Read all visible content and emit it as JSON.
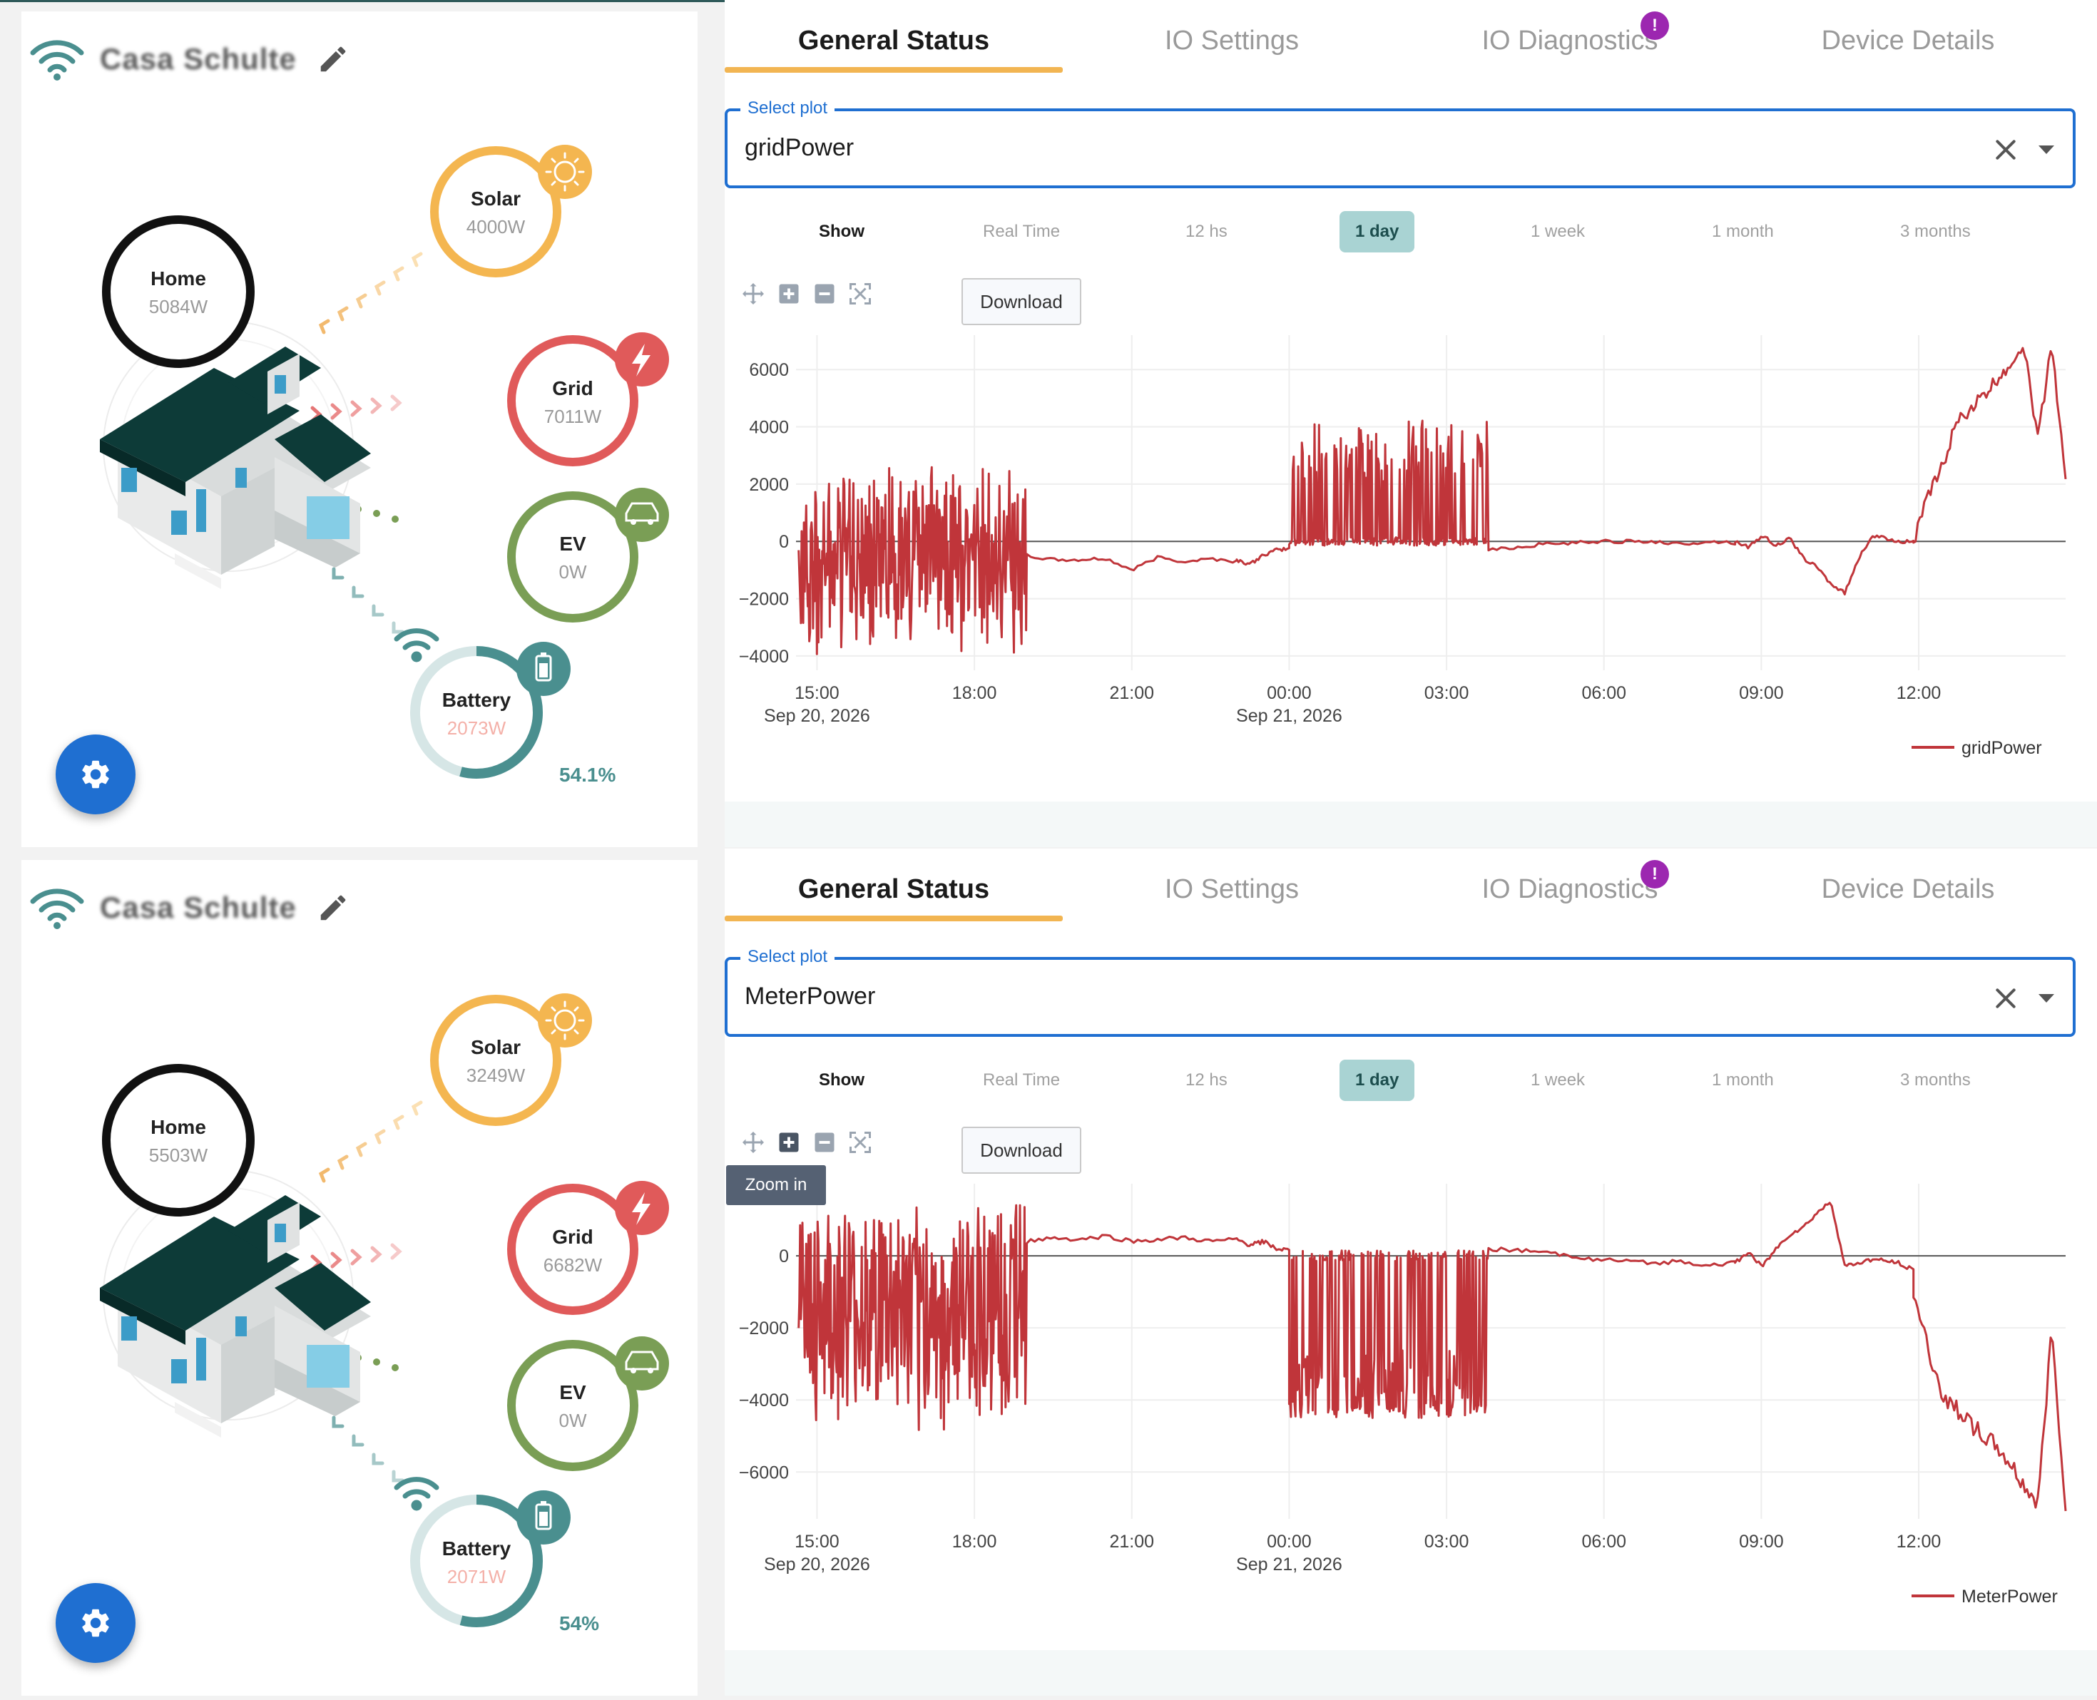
{
  "panels": [
    {
      "device_name": "Casa Schulte",
      "tabs": [
        {
          "label": "General Status",
          "active": true
        },
        {
          "label": "IO Settings",
          "active": false
        },
        {
          "label": "IO Diagnostics",
          "active": false,
          "badge": "!"
        },
        {
          "label": "Device Details",
          "active": false
        }
      ],
      "energy_flow": {
        "home": {
          "label": "Home",
          "value": "5084W"
        },
        "solar": {
          "label": "Solar",
          "value": "4000W"
        },
        "grid": {
          "label": "Grid",
          "value": "7011W"
        },
        "ev": {
          "label": "EV",
          "value": "0W"
        },
        "battery": {
          "label": "Battery",
          "value": "2073W",
          "soc": "54.1%",
          "soc_fraction": 0.541
        }
      },
      "select_plot": {
        "label": "Select plot",
        "value": "gridPower"
      },
      "time_range": {
        "show_label": "Show",
        "options": [
          "Real Time",
          "12 hs",
          "1 day",
          "1 week",
          "1 month",
          "3 months"
        ],
        "selected": "1 day"
      },
      "download_label": "Download",
      "tooltip": null,
      "chart_data": {
        "type": "line",
        "series": [
          {
            "name": "gridPower",
            "color": "#c0353a"
          }
        ],
        "x_ticks": [
          {
            "label": "15:00",
            "sub": "Sep 20, 2026",
            "hour": 0
          },
          {
            "label": "18:00",
            "sub": "",
            "hour": 3
          },
          {
            "label": "21:00",
            "sub": "",
            "hour": 6
          },
          {
            "label": "00:00",
            "sub": "Sep 21, 2026",
            "hour": 9
          },
          {
            "label": "03:00",
            "sub": "",
            "hour": 12
          },
          {
            "label": "06:00",
            "sub": "",
            "hour": 15
          },
          {
            "label": "09:00",
            "sub": "",
            "hour": 18
          },
          {
            "label": "12:00",
            "sub": "",
            "hour": 21
          }
        ],
        "x_range_hours": [
          -0.4,
          23.8
        ],
        "y_ticks": [
          -4000,
          -2000,
          0,
          2000,
          4000,
          6000
        ],
        "ylim": [
          -4500,
          7200
        ],
        "segments": [
          {
            "from": -0.35,
            "to": 4.0,
            "kind": "noise",
            "lo": -4000,
            "hi": 3200,
            "base": -500
          },
          {
            "from": 4.0,
            "to": 8.0,
            "kind": "flat",
            "values": [
              -500,
              -650,
              -650,
              -600,
              -1000,
              -550,
              -700,
              -600,
              -700
            ]
          },
          {
            "from": 8.0,
            "to": 9.0,
            "kind": "flat",
            "values": [
              -650,
              -800,
              -500,
              -300,
              -250
            ]
          },
          {
            "from": 9.0,
            "to": 12.8,
            "kind": "spikes",
            "lo": -200,
            "hi": 4500,
            "base": 0
          },
          {
            "from": 12.8,
            "to": 17.5,
            "kind": "flat",
            "values": [
              -300,
              -200,
              -100,
              -50,
              0,
              0,
              0,
              -100,
              0,
              -50
            ]
          },
          {
            "from": 17.5,
            "to": 20.9,
            "kind": "flat",
            "values": [
              0,
              -200,
              200,
              -150,
              100,
              -600,
              -900,
              -1500,
              -1800,
              -600,
              200,
              100,
              0,
              0
            ]
          },
          {
            "from": 20.9,
            "to": 23.8,
            "kind": "rise",
            "values": [
              0,
              1500,
              2500,
              4000,
              4600,
              5000,
              5600,
              6200,
              6900,
              3500,
              7000,
              2000
            ]
          }
        ]
      }
    },
    {
      "device_name": "Casa Schulte",
      "tabs": [
        {
          "label": "General Status",
          "active": true
        },
        {
          "label": "IO Settings",
          "active": false
        },
        {
          "label": "IO Diagnostics",
          "active": false,
          "badge": "!"
        },
        {
          "label": "Device Details",
          "active": false
        }
      ],
      "energy_flow": {
        "home": {
          "label": "Home",
          "value": "5503W"
        },
        "solar": {
          "label": "Solar",
          "value": "3249W"
        },
        "grid": {
          "label": "Grid",
          "value": "6682W"
        },
        "ev": {
          "label": "EV",
          "value": "0W"
        },
        "battery": {
          "label": "Battery",
          "value": "2071W",
          "soc": "54%",
          "soc_fraction": 0.54
        }
      },
      "select_plot": {
        "label": "Select plot",
        "value": "MeterPower"
      },
      "time_range": {
        "show_label": "Show",
        "options": [
          "Real Time",
          "12 hs",
          "1 day",
          "1 week",
          "1 month",
          "3 months"
        ],
        "selected": "1 day"
      },
      "download_label": "Download",
      "tooltip": "Zoom in",
      "chart_data": {
        "type": "line",
        "series": [
          {
            "name": "MeterPower",
            "color": "#c0353a"
          }
        ],
        "x_ticks": [
          {
            "label": "15:00",
            "sub": "Sep 20, 2026",
            "hour": 0
          },
          {
            "label": "18:00",
            "sub": "",
            "hour": 3
          },
          {
            "label": "21:00",
            "sub": "",
            "hour": 6
          },
          {
            "label": "00:00",
            "sub": "Sep 21, 2026",
            "hour": 9
          },
          {
            "label": "03:00",
            "sub": "",
            "hour": 12
          },
          {
            "label": "06:00",
            "sub": "",
            "hour": 15
          },
          {
            "label": "09:00",
            "sub": "",
            "hour": 18
          },
          {
            "label": "12:00",
            "sub": "",
            "hour": 21
          }
        ],
        "x_range_hours": [
          -0.4,
          23.8
        ],
        "y_ticks": [
          -6000,
          -4000,
          -2000,
          0
        ],
        "ylim": [
          -7300,
          2000
        ],
        "segments": [
          {
            "from": -0.35,
            "to": 4.0,
            "kind": "noise",
            "lo": -5500,
            "hi": 1400,
            "base": -1500
          },
          {
            "from": 4.0,
            "to": 8.0,
            "kind": "flat",
            "values": [
              400,
              500,
              450,
              550,
              400,
              450,
              500,
              400,
              450
            ]
          },
          {
            "from": 8.0,
            "to": 9.0,
            "kind": "flat",
            "values": [
              450,
              300,
              400,
              200,
              150
            ]
          },
          {
            "from": 9.0,
            "to": 12.8,
            "kind": "spikes",
            "lo": -4500,
            "hi": 200,
            "base": 0
          },
          {
            "from": 12.8,
            "to": 17.5,
            "kind": "flat",
            "values": [
              200,
              150,
              100,
              0,
              -100,
              -150,
              -200,
              -150,
              -250,
              -200
            ]
          },
          {
            "from": 17.5,
            "to": 20.9,
            "kind": "flat",
            "values": [
              -200,
              100,
              -300,
              200,
              600,
              800,
              1200,
              1500,
              -300,
              -200,
              -100,
              -150,
              -200,
              -400
            ]
          },
          {
            "from": 20.9,
            "to": 23.8,
            "kind": "fall",
            "values": [
              -1000,
              -2500,
              -3800,
              -4200,
              -4600,
              -5000,
              -5300,
              -5800,
              -6400,
              -6900,
              -2000,
              -7000
            ]
          }
        ]
      }
    }
  ],
  "colors": {
    "solar": "#f4b650",
    "grid": "#e05a5a",
    "ev": "#7a9e55",
    "battery": "#4a8f8f",
    "battery_value": "#f4b0a8",
    "home": "#111111",
    "accent": "#1f6fd1",
    "badge": "#9c27b0",
    "tab_indicator": "#f2b552"
  },
  "icons": [
    "wifi-icon",
    "pencil-icon",
    "sun-icon",
    "bolt-icon",
    "car-icon",
    "battery-icon",
    "gear-icon",
    "close-icon",
    "caret-down-icon",
    "pan-icon",
    "zoom-in-icon",
    "zoom-out-icon",
    "autoscale-icon"
  ]
}
